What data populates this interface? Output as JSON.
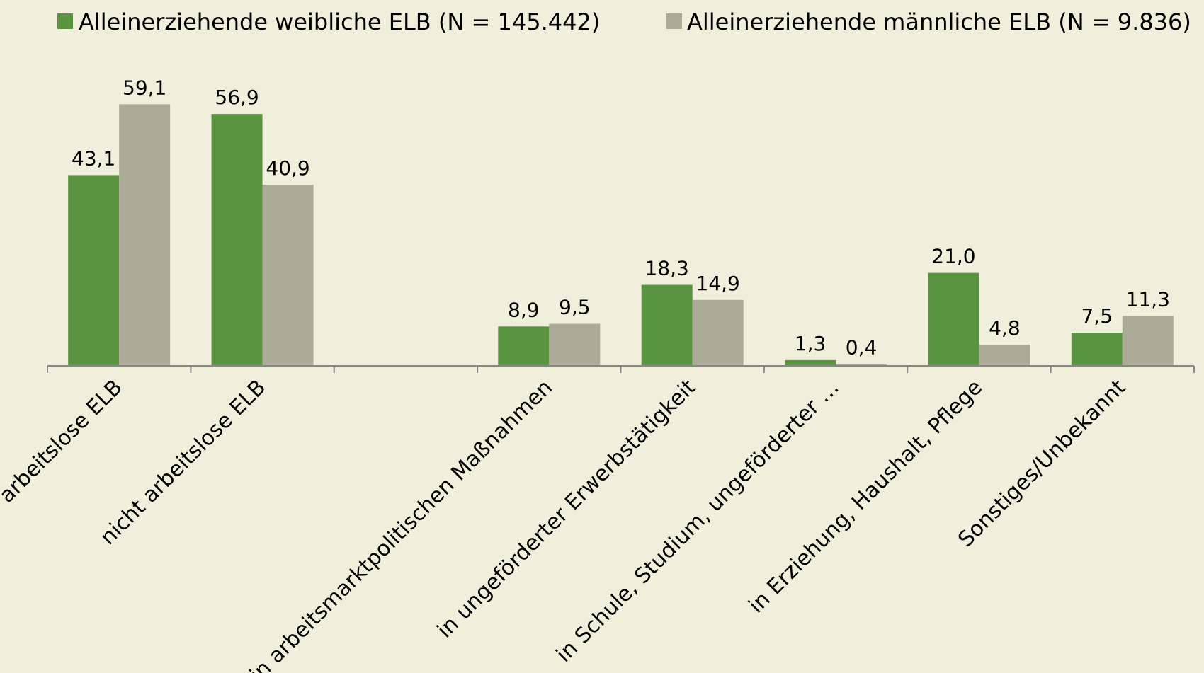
{
  "chart_data": {
    "type": "bar",
    "categories": [
      "arbeitslose ELB",
      "nicht arbeitslose ELB",
      null,
      "in arbeitsmarktpolitischen Maßnahmen",
      "in ungeförderter Erwerbstätigkeit",
      "in Schule, Studium, ungeförderter …",
      "in Erziehung, Haushalt, Pflege",
      "Sonstiges/Unbekannt"
    ],
    "series": [
      {
        "name": "Alleinerziehende weibliche ELB (N = 145.442)",
        "color": "#5b9440",
        "values": [
          43.1,
          56.9,
          null,
          8.9,
          18.3,
          1.3,
          21.0,
          7.5
        ],
        "value_labels": [
          "43,1",
          "56,9",
          null,
          "8,9",
          "18,3",
          "1,3",
          "21,0",
          "7,5"
        ]
      },
      {
        "name": "Alleinerziehende männliche ELB (N = 9.836)",
        "color": "#abab98",
        "values": [
          59.1,
          40.9,
          null,
          9.5,
          14.9,
          0.4,
          4.8,
          11.3
        ],
        "value_labels": [
          "59,1",
          "40,9",
          null,
          "9,5",
          "14,9",
          "0,4",
          "4,8",
          "11,3"
        ]
      }
    ],
    "legend": "top"
  }
}
